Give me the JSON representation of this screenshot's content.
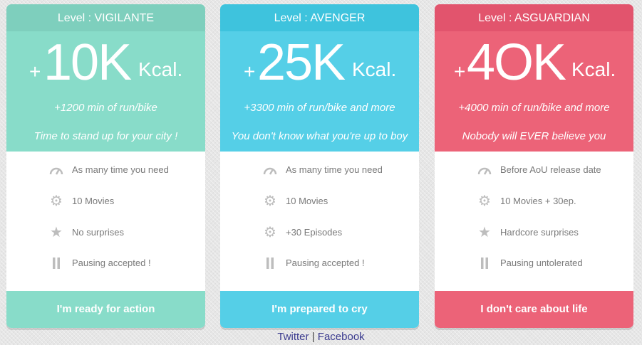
{
  "plans": [
    {
      "level": "Level : VIGILANTE",
      "plus": "+",
      "amount": "10K",
      "unit": "Kcal.",
      "minutes": "+1200 min of run/bike",
      "tagline": "Time to stand up for your city !",
      "features": [
        {
          "icon": "speedometer-icon",
          "text": "As many time you need"
        },
        {
          "icon": "gear-icon",
          "text": "10 Movies"
        },
        {
          "icon": "star-icon",
          "text": "No surprises"
        },
        {
          "icon": "pause-icon",
          "text": "Pausing accepted !"
        }
      ],
      "cta": "I'm ready for action",
      "colors": {
        "header": "#7ecfbd",
        "body": "#88dcc9",
        "cta": "#88dcc9"
      }
    },
    {
      "level": "Level : AVENGER",
      "plus": "+",
      "amount": "25K",
      "unit": "Kcal.",
      "minutes": "+3300 min of run/bike and more",
      "tagline": "You don't know what you're up to boy",
      "features": [
        {
          "icon": "speedometer-icon",
          "text": "As many time you need"
        },
        {
          "icon": "gear-icon",
          "text": "10 Movies"
        },
        {
          "icon": "gear-icon",
          "text": "+30 Episodes"
        },
        {
          "icon": "pause-icon",
          "text": "Pausing accepted !"
        }
      ],
      "cta": "I'm prepared to cry",
      "colors": {
        "header": "#3ec3dd",
        "body": "#55cfe7",
        "cta": "#55cfe7"
      }
    },
    {
      "level": "Level : ASGUARDIAN",
      "plus": "+",
      "amount": "4OK",
      "unit": "Kcal.",
      "minutes": "+4000 min of run/bike and more",
      "tagline": "Nobody will EVER believe you",
      "features": [
        {
          "icon": "speedometer-icon",
          "text": "Before AoU release date"
        },
        {
          "icon": "gear-icon",
          "text": "10 Movies + 30ep."
        },
        {
          "icon": "star-icon",
          "text": "Hardcore surprises"
        },
        {
          "icon": "pause-icon",
          "text": "Pausing untolerated"
        }
      ],
      "cta": "I don't care about life",
      "colors": {
        "header": "#e2546d",
        "body": "#ec6378",
        "cta": "#ec6378"
      }
    }
  ],
  "footer": {
    "twitter": "Twitter",
    "separator": "|",
    "facebook": "Facebook"
  }
}
